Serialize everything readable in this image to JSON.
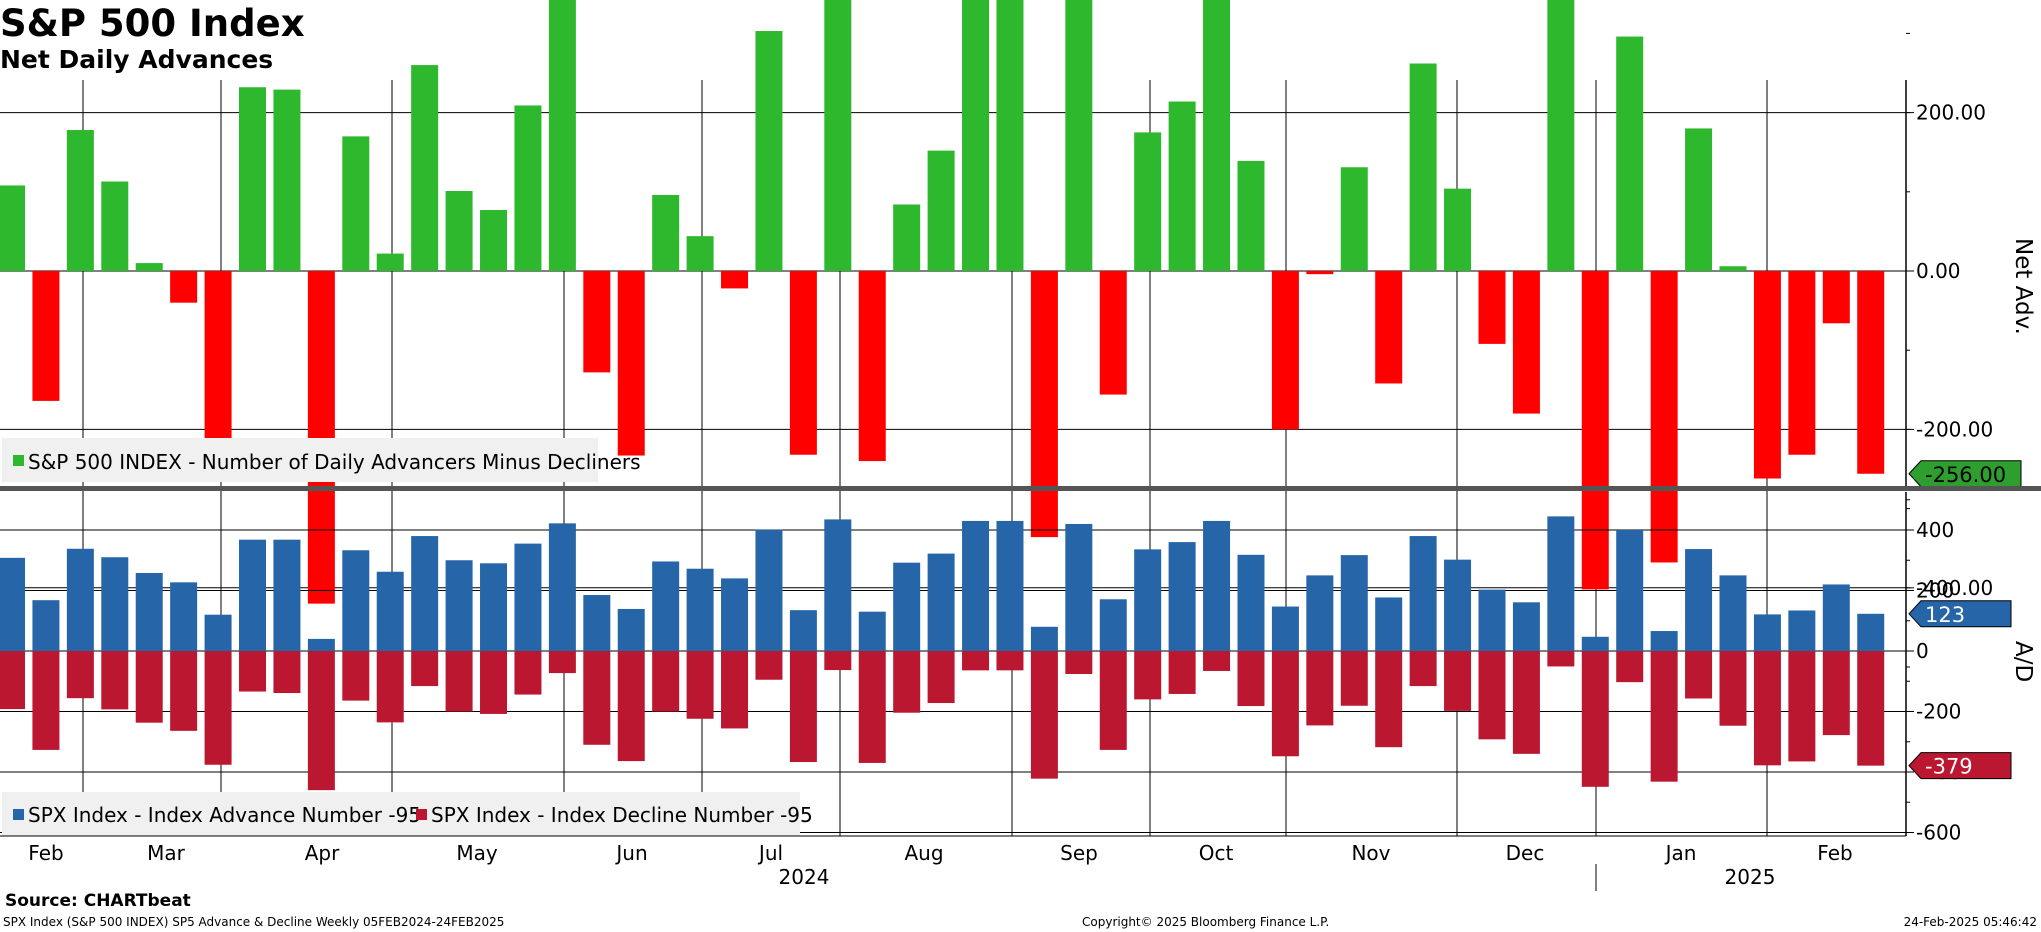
{
  "header": {
    "title": "S&P 500 Index",
    "subtitle": "Net Daily Advances"
  },
  "footer": {
    "source": "Source: CHARTbeat",
    "description": "SPX Index (S&P 500 INDEX) SP5 Advance & Decline  Weekly 05FEB2024-24FEB2025",
    "copyright": "Copyright© 2025 Bloomberg Finance L.P.",
    "timestamp": "24-Feb-2025 05:46:42"
  },
  "colors": {
    "net_positive": "#2eb82e",
    "net_negative": "#ff0000",
    "advance": "#2666a8",
    "decline": "#bb1731",
    "net_last_tag": "#2e9e2e",
    "grid": "#000000"
  },
  "chart_data": [
    {
      "type": "bar",
      "panel": "top",
      "ylabel": "Net Adv.",
      "ylim": [
        -520,
        520
      ],
      "yticks": [
        "400.00",
        "200.00",
        "0.00",
        "-200.00",
        "-400.00"
      ],
      "last_value_label": "-256.00",
      "legend": [
        {
          "name": "S&P 500 INDEX - Number of Daily Advancers Minus Decliners",
          "color": "#2eb82e"
        }
      ],
      "series": [
        {
          "name": "S&P 500 INDEX - Number of Daily Advancers Minus Decliners",
          "values": [
            108,
            -164,
            178,
            113,
            10,
            -40,
            -262,
            232,
            229,
            -420,
            170,
            22,
            260,
            101,
            77,
            209,
            350,
            -128,
            -233,
            96,
            44,
            -22,
            303,
            -232,
            376,
            -240,
            84,
            152,
            368,
            368,
            -336,
            346,
            -156,
            175,
            214,
            366,
            139,
            -200,
            -4,
            131,
            -142,
            262,
            104,
            -92,
            -180,
            395,
            -402,
            296,
            -368,
            180,
            6,
            -262,
            -232,
            -66,
            -256
          ]
        }
      ]
    },
    {
      "type": "bar",
      "panel": "bottom",
      "ylabel": "A/D",
      "ylim": [
        -630,
        560
      ],
      "yticks": [
        "400",
        "200",
        "0",
        "-200",
        "-400",
        "-600"
      ],
      "last_value_labels": {
        "advance": "123",
        "decline": "-379"
      },
      "legend": [
        {
          "name": "SPX Index - Index Advance Number -95",
          "color": "#2666a8"
        },
        {
          "name": "SPX Index - Index Decline Number -95",
          "color": "#bb1731"
        }
      ],
      "series": [
        {
          "name": "SPX Index - Index Advance Number -95",
          "values": [
            308,
            168,
            338,
            310,
            258,
            227,
            120,
            368,
            368,
            40,
            333,
            262,
            380,
            300,
            290,
            355,
            422,
            185,
            139,
            296,
            272,
            240,
            401,
            135,
            435,
            130,
            292,
            322,
            430,
            430,
            80,
            420,
            171,
            336,
            360,
            430,
            318,
            147,
            250,
            317,
            177,
            380,
            302,
            203,
            161,
            445,
            47,
            400,
            66,
            337,
            250,
            121,
            134,
            220,
            123
          ]
        },
        {
          "name": "SPX Index - Index Decline Number -95",
          "values": [
            -192,
            -327,
            -156,
            -193,
            -237,
            -264,
            -376,
            -134,
            -139,
            -460,
            -164,
            -236,
            -116,
            -200,
            -208,
            -144,
            -73,
            -310,
            -364,
            -200,
            -224,
            -256,
            -95,
            -367,
            -63,
            -370,
            -204,
            -172,
            -64,
            -64,
            -422,
            -76,
            -327,
            -160,
            -142,
            -66,
            -182,
            -348,
            -246,
            -181,
            -318,
            -116,
            -198,
            -292,
            -340,
            -51,
            -449,
            -103,
            -432,
            -157,
            -247,
            -378,
            -365,
            -278,
            -379
          ]
        }
      ],
      "x_month_labels": [
        "Feb",
        "Mar",
        "Apr",
        "May",
        "Jun",
        "Jul",
        "Aug",
        "Sep",
        "Oct",
        "Nov",
        "Dec",
        "Jan",
        "Feb"
      ],
      "x_year_labels": [
        "2024",
        "2025"
      ]
    }
  ]
}
